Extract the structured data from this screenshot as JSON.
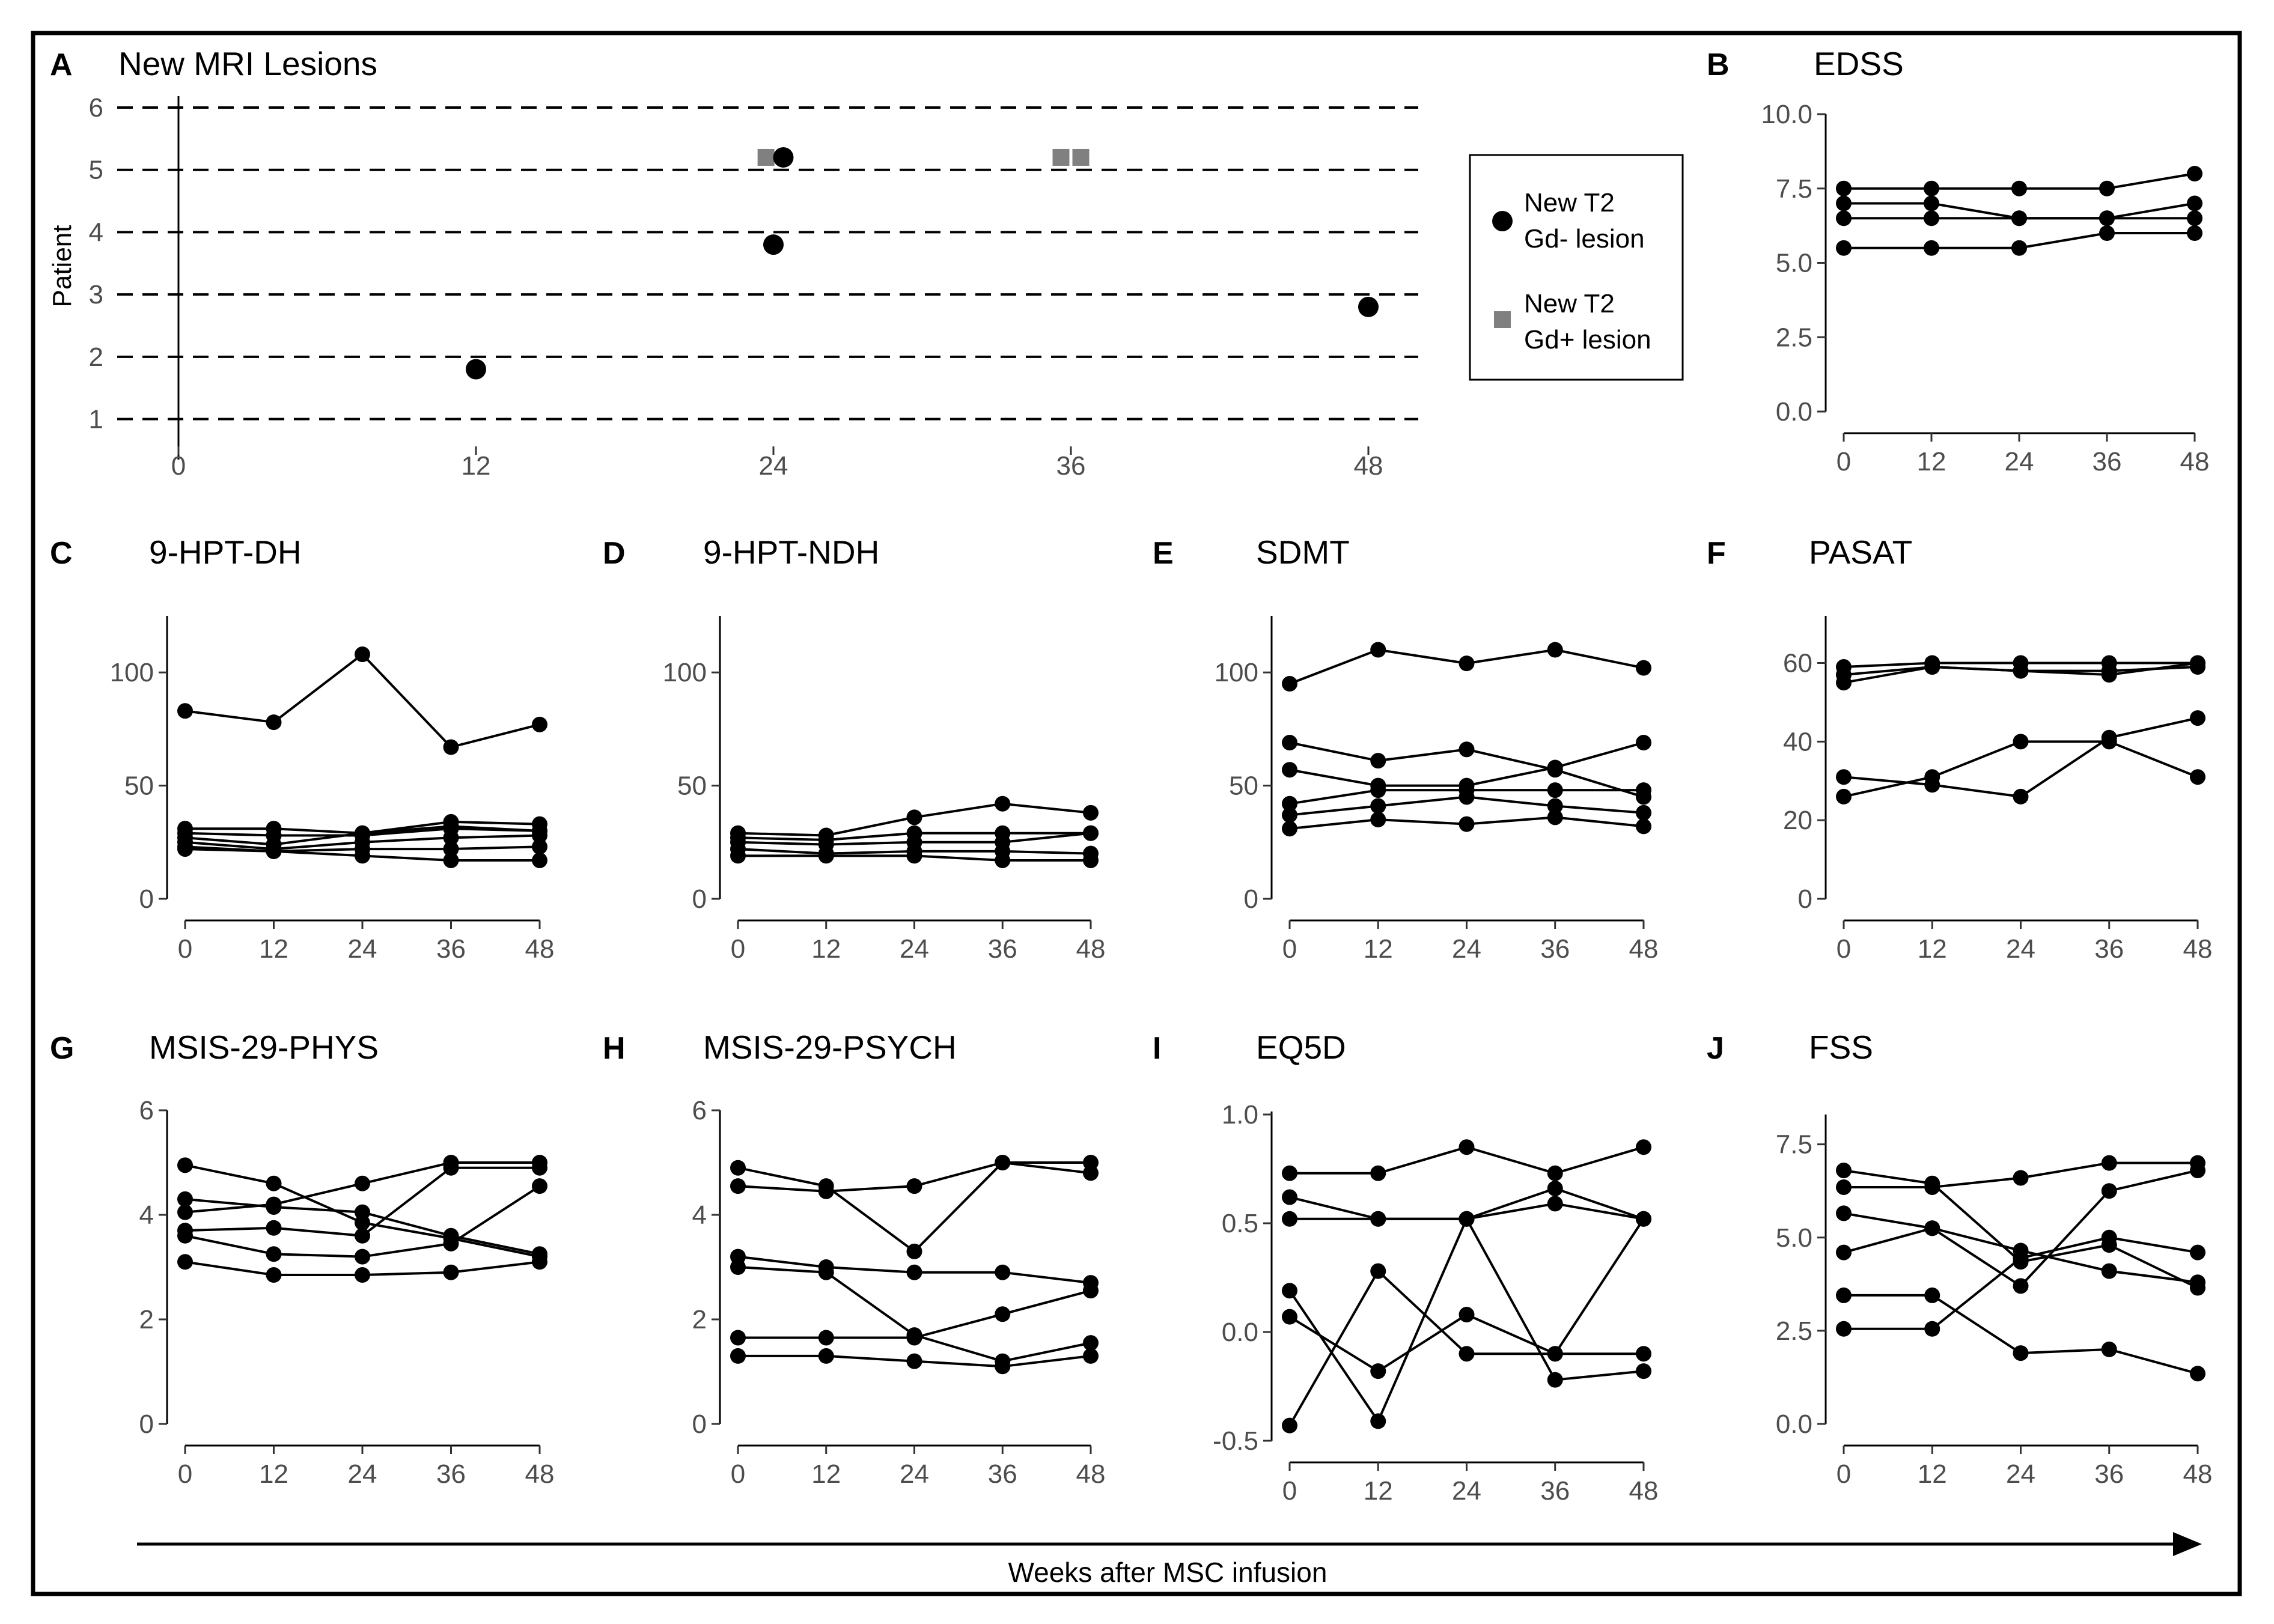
{
  "colors": {
    "frame": "#000000",
    "point": "#000000",
    "gd_plus": "#808080",
    "tick_text": "#4d4d4d"
  },
  "x_caption": "Weeks after MSC infusion",
  "chart_data": [
    {
      "id": "A",
      "letter": "A",
      "type": "scatter",
      "title": "New MRI Lesions",
      "ylabel": "Patient",
      "xticks": [
        0,
        12,
        24,
        36,
        48
      ],
      "xlim": [
        0,
        48
      ],
      "yticks": [
        1,
        2,
        3,
        4,
        5,
        6
      ],
      "ylim": [
        0.6,
        6.5
      ],
      "gridlines": [
        1,
        2,
        3,
        4,
        5,
        6
      ],
      "legend": {
        "position": "right",
        "entries": [
          {
            "shape": "circle",
            "line1": "New T2",
            "line2": "Gd- lesion"
          },
          {
            "shape": "square",
            "line1": "New T2",
            "line2": "Gd+ lesion"
          }
        ]
      },
      "points_gd_minus": [
        {
          "x": 12,
          "y": 1.8
        },
        {
          "x": 24,
          "y": 3.8
        },
        {
          "x": 24.4,
          "y": 5.2
        },
        {
          "x": 48,
          "y": 2.8
        }
      ],
      "points_gd_plus": [
        {
          "x": 23.7,
          "y": 5.2
        },
        {
          "x": 35.6,
          "y": 5.2
        },
        {
          "x": 36.4,
          "y": 5.2
        }
      ]
    },
    {
      "id": "B",
      "letter": "B",
      "type": "line",
      "title": "EDSS",
      "x": [
        0,
        12,
        24,
        36,
        48
      ],
      "yticks": [
        0,
        2.5,
        5,
        7.5,
        10
      ],
      "ytick_labels": [
        "0.0",
        "2.5",
        "5.0",
        "7.5",
        "10.0"
      ],
      "ylim": [
        0,
        10
      ],
      "series": [
        {
          "values": [
            7.5,
            7.5,
            7.5,
            7.5,
            8
          ]
        },
        {
          "values": [
            7,
            7,
            6.5,
            6.5,
            7
          ]
        },
        {
          "values": [
            6.5,
            6.5,
            6.5,
            6.5,
            6.5
          ]
        },
        {
          "values": [
            5.5,
            5.5,
            5.5,
            6,
            6
          ]
        }
      ]
    },
    {
      "id": "C",
      "letter": "C",
      "type": "line",
      "title": "9-HPT-DH",
      "x": [
        0,
        12,
        24,
        36,
        48
      ],
      "yticks": [
        0,
        50,
        100
      ],
      "ytick_labels": [
        "0",
        "50",
        "100"
      ],
      "ylim": [
        0,
        125
      ],
      "series": [
        {
          "values": [
            83,
            78,
            108,
            67,
            77
          ]
        },
        {
          "values": [
            31,
            31,
            29,
            34,
            33
          ]
        },
        {
          "values": [
            29,
            28,
            28,
            31,
            30
          ]
        },
        {
          "values": [
            27,
            24,
            29,
            32,
            30
          ]
        },
        {
          "values": [
            25,
            22,
            25,
            27,
            28
          ]
        },
        {
          "values": [
            23,
            21,
            22,
            22,
            23
          ]
        },
        {
          "values": [
            22,
            21,
            19,
            17,
            17
          ]
        }
      ]
    },
    {
      "id": "D",
      "letter": "D",
      "type": "line",
      "title": "9-HPT-NDH",
      "x": [
        0,
        12,
        24,
        36,
        48
      ],
      "yticks": [
        0,
        50,
        100
      ],
      "ytick_labels": [
        "0",
        "50",
        "100"
      ],
      "ylim": [
        0,
        125
      ],
      "series": [
        {
          "values": [
            29,
            28,
            36,
            42,
            38
          ]
        },
        {
          "values": [
            27,
            26,
            29,
            29,
            29
          ]
        },
        {
          "values": [
            25,
            24,
            25,
            25,
            29
          ]
        },
        {
          "values": [
            22,
            20,
            21,
            21,
            20
          ]
        },
        {
          "values": [
            19,
            19,
            19,
            17,
            17
          ]
        }
      ]
    },
    {
      "id": "E",
      "letter": "E",
      "type": "line",
      "title": "SDMT",
      "x": [
        0,
        12,
        24,
        36,
        48
      ],
      "yticks": [
        0,
        50,
        100
      ],
      "ytick_labels": [
        "0",
        "50",
        "100"
      ],
      "ylim": [
        0,
        125
      ],
      "series": [
        {
          "values": [
            95,
            110,
            104,
            110,
            102
          ]
        },
        {
          "values": [
            69,
            61,
            66,
            57,
            45
          ]
        },
        {
          "values": [
            57,
            50,
            50,
            58,
            69
          ]
        },
        {
          "values": [
            42,
            48,
            48,
            48,
            48
          ]
        },
        {
          "values": [
            37,
            41,
            45,
            41,
            38
          ]
        },
        {
          "values": [
            31,
            35,
            33,
            36,
            32
          ]
        }
      ]
    },
    {
      "id": "F",
      "letter": "F",
      "type": "line",
      "title": "PASAT",
      "x": [
        0,
        12,
        24,
        36,
        48
      ],
      "yticks": [
        0,
        20,
        40,
        60
      ],
      "ytick_labels": [
        "0",
        "20",
        "40",
        "60"
      ],
      "ylim": [
        0,
        72
      ],
      "series": [
        {
          "values": [
            59,
            60,
            60,
            60,
            60
          ]
        },
        {
          "values": [
            57,
            59,
            58,
            58,
            59
          ]
        },
        {
          "values": [
            55,
            59,
            58,
            57,
            60
          ]
        },
        {
          "values": [
            31,
            29,
            26,
            41,
            46
          ]
        },
        {
          "values": [
            26,
            31,
            40,
            40,
            31
          ]
        }
      ]
    },
    {
      "id": "G",
      "letter": "G",
      "type": "line",
      "title": "MSIS-29-PHYS",
      "x": [
        0,
        12,
        24,
        36,
        48
      ],
      "yticks": [
        0,
        2,
        4,
        6
      ],
      "ytick_labels": [
        "0",
        "2",
        "4",
        "6"
      ],
      "ylim": [
        0,
        6
      ],
      "series": [
        {
          "values": [
            4.95,
            4.6,
            3.85,
            3.55,
            3.2
          ]
        },
        {
          "values": [
            4.3,
            4.15,
            4.05,
            3.6,
            3.25
          ]
        },
        {
          "values": [
            4.05,
            4.2,
            4.6,
            5.0,
            5.0
          ]
        },
        {
          "values": [
            3.7,
            3.75,
            3.6,
            4.9,
            4.9
          ]
        },
        {
          "values": [
            3.6,
            3.25,
            3.2,
            3.45,
            4.55
          ]
        },
        {
          "values": [
            3.1,
            2.85,
            2.85,
            2.9,
            3.1
          ]
        }
      ]
    },
    {
      "id": "H",
      "letter": "H",
      "type": "line",
      "title": "MSIS-29-PSYCH",
      "x": [
        0,
        12,
        24,
        36,
        48
      ],
      "yticks": [
        0,
        2,
        4,
        6
      ],
      "ytick_labels": [
        "0",
        "2",
        "4",
        "6"
      ],
      "ylim": [
        0,
        6
      ],
      "series": [
        {
          "values": [
            4.9,
            4.55,
            3.3,
            5.0,
            5.0
          ]
        },
        {
          "values": [
            4.55,
            4.45,
            4.55,
            5.0,
            4.8
          ]
        },
        {
          "values": [
            3.2,
            3.0,
            2.9,
            2.9,
            2.7
          ]
        },
        {
          "values": [
            3.0,
            2.9,
            1.7,
            1.2,
            1.55
          ]
        },
        {
          "values": [
            1.65,
            1.65,
            1.65,
            2.1,
            2.55
          ]
        },
        {
          "values": [
            1.3,
            1.3,
            1.2,
            1.1,
            1.3
          ]
        }
      ]
    },
    {
      "id": "I",
      "letter": "I",
      "type": "line",
      "title": "EQ5D",
      "x": [
        0,
        12,
        24,
        36,
        48
      ],
      "yticks": [
        -0.5,
        0,
        0.5,
        1
      ],
      "ytick_labels": [
        "-0.5",
        "0.0",
        "0.5",
        "1.0"
      ],
      "ylim": [
        -0.5,
        1
      ],
      "series": [
        {
          "values": [
            0.73,
            0.73,
            0.85,
            0.73,
            0.85
          ]
        },
        {
          "values": [
            0.62,
            0.52,
            0.52,
            0.66,
            0.52
          ]
        },
        {
          "values": [
            0.52,
            0.52,
            0.52,
            0.59,
            0.52
          ]
        },
        {
          "values": [
            0.19,
            -0.41,
            0.52,
            -0.22,
            -0.18
          ]
        },
        {
          "values": [
            0.07,
            -0.18,
            0.08,
            -0.1,
            -0.1
          ]
        },
        {
          "values": [
            -0.43,
            0.28,
            -0.1,
            -0.1,
            0.52
          ]
        }
      ]
    },
    {
      "id": "J",
      "letter": "J",
      "type": "line",
      "title": "FSS",
      "x": [
        0,
        12,
        24,
        36,
        48
      ],
      "yticks": [
        0,
        2.5,
        5,
        7.5
      ],
      "ytick_labels": [
        "0.0",
        "2.5",
        "5.0",
        "7.5"
      ],
      "ylim": [
        0,
        8.3
      ],
      "series": [
        {
          "values": [
            6.8,
            6.45,
            4.35,
            4.8,
            3.65
          ]
        },
        {
          "values": [
            6.35,
            6.35,
            6.6,
            7.0,
            7.0
          ]
        },
        {
          "values": [
            5.65,
            5.25,
            4.65,
            4.1,
            3.8
          ]
        },
        {
          "values": [
            4.6,
            5.25,
            3.7,
            6.25,
            6.8
          ]
        },
        {
          "values": [
            3.45,
            3.45,
            1.9,
            2.0,
            1.35
          ]
        },
        {
          "values": [
            2.55,
            2.55,
            4.45,
            5.0,
            4.6
          ]
        }
      ]
    }
  ]
}
